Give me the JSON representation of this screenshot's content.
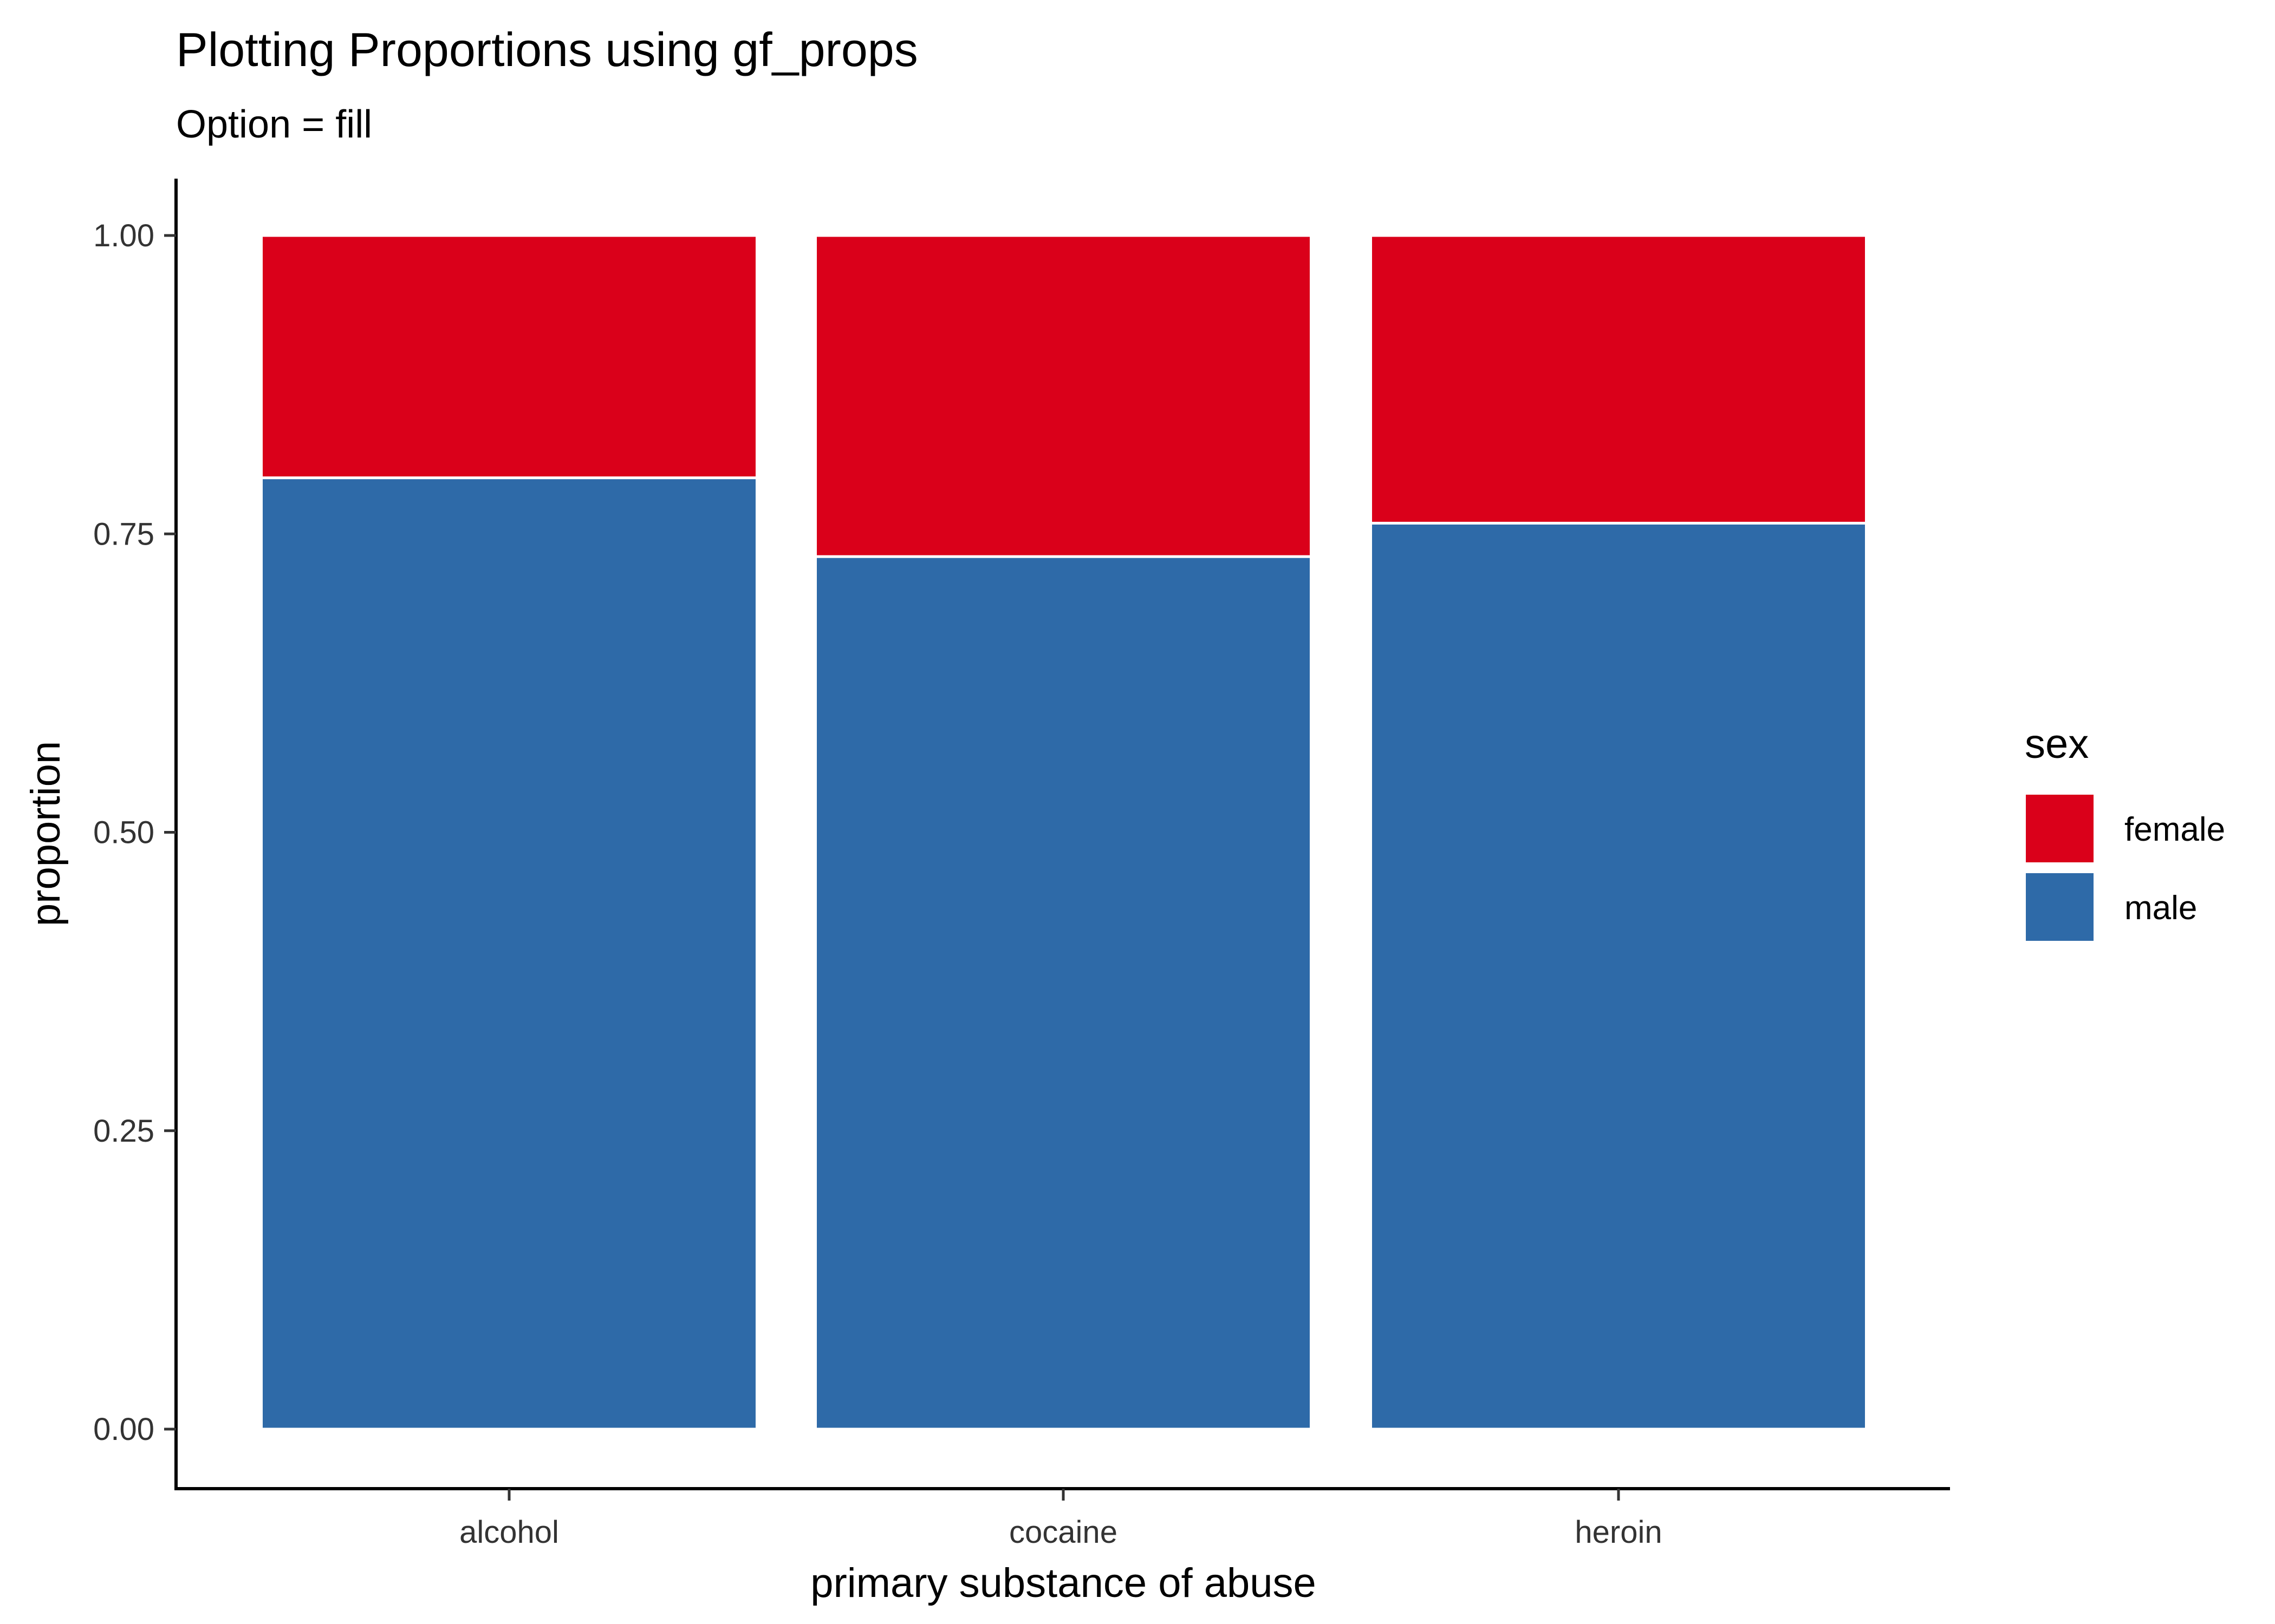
{
  "chart_data": {
    "type": "bar",
    "stacked": true,
    "title": "Plotting Proportions using gf_props",
    "subtitle": "Option = fill",
    "xlabel": "primary substance of abuse",
    "ylabel": "proportion",
    "categories": [
      "alcohol",
      "cocaine",
      "heroin"
    ],
    "series": [
      {
        "name": "male",
        "color": "#2E6AA8",
        "values": [
          0.797,
          0.731,
          0.759
        ]
      },
      {
        "name": "female",
        "color": "#DA001A",
        "values": [
          0.203,
          0.269,
          0.241
        ]
      }
    ],
    "ylim": [
      0,
      1
    ],
    "yticks": [
      0,
      0.25,
      0.5,
      0.75,
      1.0
    ],
    "ytick_labels": [
      "0.00",
      "0.25",
      "0.50",
      "0.75",
      "1.00"
    ],
    "grid": false,
    "legend": {
      "title": "sex",
      "position": "right",
      "entries": [
        {
          "label": "female",
          "color": "#DA001A"
        },
        {
          "label": "male",
          "color": "#2E6AA8"
        }
      ]
    }
  }
}
